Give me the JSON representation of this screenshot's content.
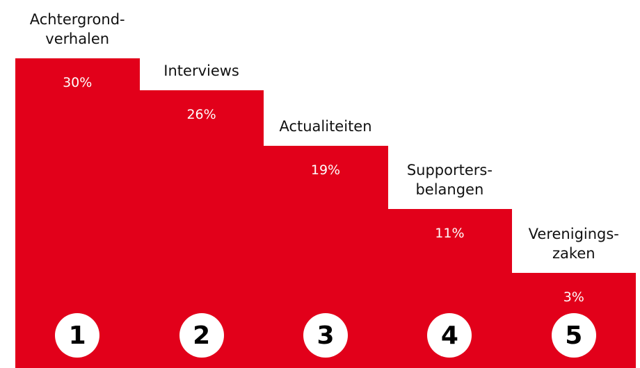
{
  "chart_data": {
    "type": "bar",
    "categories": [
      "Achtergrond-\nverhalen",
      "Interviews",
      "Actualiteiten",
      "Supporters-\nbelangen",
      "Verenigings-\nzaken"
    ],
    "values": [
      30,
      26,
      19,
      11,
      3
    ],
    "value_labels": [
      "30%",
      "26%",
      "19%",
      "11%",
      "3%"
    ],
    "ranks": [
      1,
      2,
      3,
      4,
      5
    ],
    "color": "#e2001a",
    "ylim": [
      -9,
      30
    ]
  }
}
